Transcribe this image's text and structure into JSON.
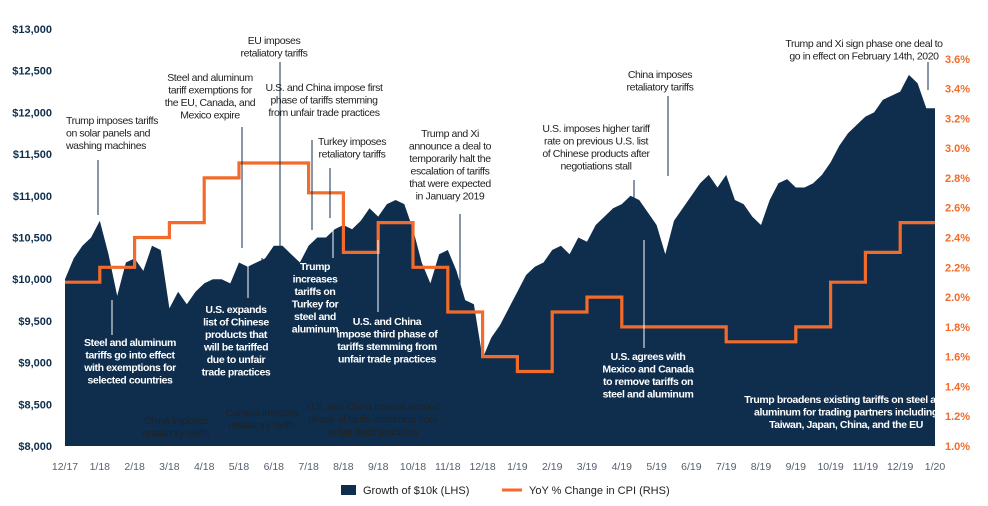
{
  "colors": {
    "area": "#0f2e4d",
    "cpi": "#f26b2a",
    "left_axis": "#0f2e4d",
    "right_axis": "#f26b2a",
    "dark_text": "#222222",
    "light_text": "#ffffff",
    "leader": "#ffffff"
  },
  "chart_data": {
    "type": "area+line",
    "x_labels": [
      "12/17",
      "1/18",
      "2/18",
      "3/18",
      "4/18",
      "5/18",
      "6/18",
      "7/18",
      "8/18",
      "9/18",
      "10/18",
      "11/18",
      "12/18",
      "1/19",
      "2/19",
      "3/19",
      "4/19",
      "5/19",
      "6/19",
      "7/19",
      "8/19",
      "9/19",
      "10/19",
      "11/19",
      "12/19",
      "1/20"
    ],
    "left_axis": {
      "min": 8000,
      "max": 13000,
      "ticks": [
        "$8,000",
        "$8,500",
        "$9,000",
        "$9,500",
        "$10,000",
        "$10,500",
        "$11,000",
        "$11,500",
        "$12,000",
        "$12,500",
        "$13,000"
      ]
    },
    "right_axis": {
      "min": 1.0,
      "max": 3.8,
      "ticks": [
        "1.0%",
        "1.2%",
        "1.4%",
        "1.6%",
        "1.8%",
        "2.0%",
        "2.2%",
        "2.4%",
        "2.6%",
        "2.8%",
        "3.0%",
        "3.2%",
        "3.4%",
        "3.6%"
      ]
    },
    "series": [
      {
        "name": "Growth of $10k (LHS)",
        "type": "area",
        "x": [
          0,
          0.25,
          0.5,
          0.75,
          1,
          1.25,
          1.5,
          1.75,
          2,
          2.25,
          2.5,
          2.75,
          3,
          3.25,
          3.5,
          3.75,
          4,
          4.25,
          4.5,
          4.75,
          5,
          5.25,
          5.5,
          5.75,
          6,
          6.25,
          6.5,
          6.75,
          7,
          7.25,
          7.5,
          7.75,
          8,
          8.25,
          8.5,
          8.75,
          9,
          9.25,
          9.5,
          9.75,
          10,
          10.25,
          10.5,
          10.75,
          11,
          11.25,
          11.5,
          11.75,
          12,
          12.25,
          12.5,
          12.75,
          13,
          13.25,
          13.5,
          13.75,
          14,
          14.25,
          14.5,
          14.75,
          15,
          15.25,
          15.5,
          15.75,
          16,
          16.25,
          16.5,
          16.75,
          17,
          17.25,
          17.5,
          17.75,
          18,
          18.25,
          18.5,
          18.75,
          19,
          19.25,
          19.5,
          19.75,
          20,
          20.25,
          20.5,
          20.75,
          21,
          21.25,
          21.5,
          21.75,
          22,
          22.25,
          22.5,
          22.75,
          23,
          23.25,
          23.5,
          23.75,
          24,
          24.25,
          24.5,
          24.75,
          25
        ],
        "values": [
          10000,
          10250,
          10400,
          10500,
          10700,
          10300,
          9800,
          10200,
          10250,
          10100,
          10400,
          10350,
          9650,
          9850,
          9700,
          9850,
          9950,
          10000,
          10000,
          9950,
          10200,
          10150,
          10200,
          10250,
          10400,
          10400,
          10300,
          10200,
          10400,
          10500,
          10500,
          10600,
          10650,
          10600,
          10700,
          10850,
          10750,
          10900,
          10950,
          10900,
          10600,
          10200,
          9950,
          10300,
          10350,
          10100,
          9750,
          9700,
          9050,
          9300,
          9450,
          9650,
          9850,
          10050,
          10150,
          10200,
          10350,
          10400,
          10300,
          10500,
          10450,
          10650,
          10750,
          10850,
          10900,
          11000,
          10950,
          10800,
          10650,
          10300,
          10700,
          10850,
          11000,
          11150,
          11250,
          11100,
          11250,
          10950,
          10900,
          10750,
          10650,
          10950,
          11150,
          11200,
          11100,
          11100,
          11150,
          11250,
          11400,
          11600,
          11750,
          11850,
          11950,
          12000,
          12150,
          12200,
          12250,
          12450,
          12350,
          12050,
          12050
        ]
      },
      {
        "name": "YoY % Change in CPI (RHS)",
        "type": "step-line",
        "x": [
          0,
          1,
          2,
          3,
          4,
          5,
          6,
          7,
          8,
          9,
          10,
          11,
          12,
          13,
          14,
          15,
          16,
          17,
          18,
          19,
          20,
          21,
          22,
          23,
          24,
          25
        ],
        "values": [
          2.1,
          2.2,
          2.4,
          2.5,
          2.8,
          2.9,
          2.9,
          2.7,
          2.3,
          2.5,
          2.2,
          1.9,
          1.6,
          1.5,
          1.9,
          2.0,
          1.8,
          1.8,
          1.8,
          1.7,
          1.7,
          1.8,
          2.1,
          2.3,
          2.5,
          2.5
        ]
      }
    ],
    "annotations": [
      {
        "id": "ann-solar-panels",
        "lines": [
          "Trump imposes tariffs",
          "on solar panels and",
          "washing machines"
        ],
        "style": "dark"
      },
      {
        "id": "ann-steel-exemptions-effect",
        "lines": [
          "Steel and aluminum",
          "tariffs go into effect",
          "with exemptions for",
          "selected countries"
        ],
        "style": "light"
      },
      {
        "id": "ann-china-retaliatory-1",
        "lines": [
          "China imposes",
          "retaliatory tariffs"
        ],
        "style": "dark"
      },
      {
        "id": "ann-exemptions-expire",
        "lines": [
          "Steel and aluminum",
          "tariff exemptions for",
          "the EU, Canada, and",
          "Mexico expire"
        ],
        "style": "dark"
      },
      {
        "id": "ann-eu-retaliatory",
        "lines": [
          "EU imposes",
          "retaliatory tariffs"
        ],
        "style": "dark"
      },
      {
        "id": "ann-us-china-first-phase",
        "lines": [
          "U.S. and China impose first",
          "phase of tariffs stemming",
          "from unfair trade practices"
        ],
        "style": "dark"
      },
      {
        "id": "ann-us-expands-list",
        "lines": [
          "U.S. expands",
          "list of Chinese",
          "products that",
          "will be tariffed",
          "due to unfair",
          "trade practices"
        ],
        "style": "light"
      },
      {
        "id": "ann-canada-retaliatory",
        "lines": [
          "Canada imposes",
          "retaliatory tariffs"
        ],
        "style": "dark"
      },
      {
        "id": "ann-turkey-retaliatory",
        "lines": [
          "Turkey imposes",
          "retaliatory tariffs"
        ],
        "style": "dark"
      },
      {
        "id": "ann-trump-turkey",
        "lines": [
          "Trump",
          "increases",
          "tariffs on",
          "Turkey for",
          "steel and",
          "aluminum"
        ],
        "style": "light"
      },
      {
        "id": "ann-us-china-second-phase",
        "lines": [
          "U.S. and China impose second",
          "phase of tariffs stemming from",
          "unfair trade practices"
        ],
        "style": "dark"
      },
      {
        "id": "ann-us-china-third-phase",
        "lines": [
          "U.S. and China",
          "impose third phase of",
          "tariffs stemming from",
          "unfair trade practices"
        ],
        "style": "light"
      },
      {
        "id": "ann-trump-xi-halt",
        "lines": [
          "Trump and Xi",
          "announce a deal to",
          "temporarily halt the",
          "escalation of tariffs",
          "that were expected",
          "in January 2019"
        ],
        "style": "dark"
      },
      {
        "id": "ann-higher-tariff-rate",
        "lines": [
          "U.S. imposes higher tariff",
          "rate on previous U.S. list",
          "of Chinese products after",
          "negotiations stall"
        ],
        "style": "dark"
      },
      {
        "id": "ann-china-retaliatory-2",
        "lines": [
          "China imposes",
          "retaliatory tariffs"
        ],
        "style": "dark"
      },
      {
        "id": "ann-mexico-canada",
        "lines": [
          "U.S. agrees with",
          "Mexico and Canada",
          "to remove tariffs on",
          "steel and aluminum"
        ],
        "style": "light"
      },
      {
        "id": "ann-phase-one",
        "lines": [
          "Trump and Xi sign phase one deal to",
          "go in effect on February 14th, 2020"
        ],
        "style": "dark"
      },
      {
        "id": "ann-broadens-tariffs",
        "lines": [
          "Trump broadens existing tariffs on steel and",
          "aluminum for trading partners including",
          "Taiwan, Japan, China, and the EU"
        ],
        "style": "light"
      }
    ]
  }
}
